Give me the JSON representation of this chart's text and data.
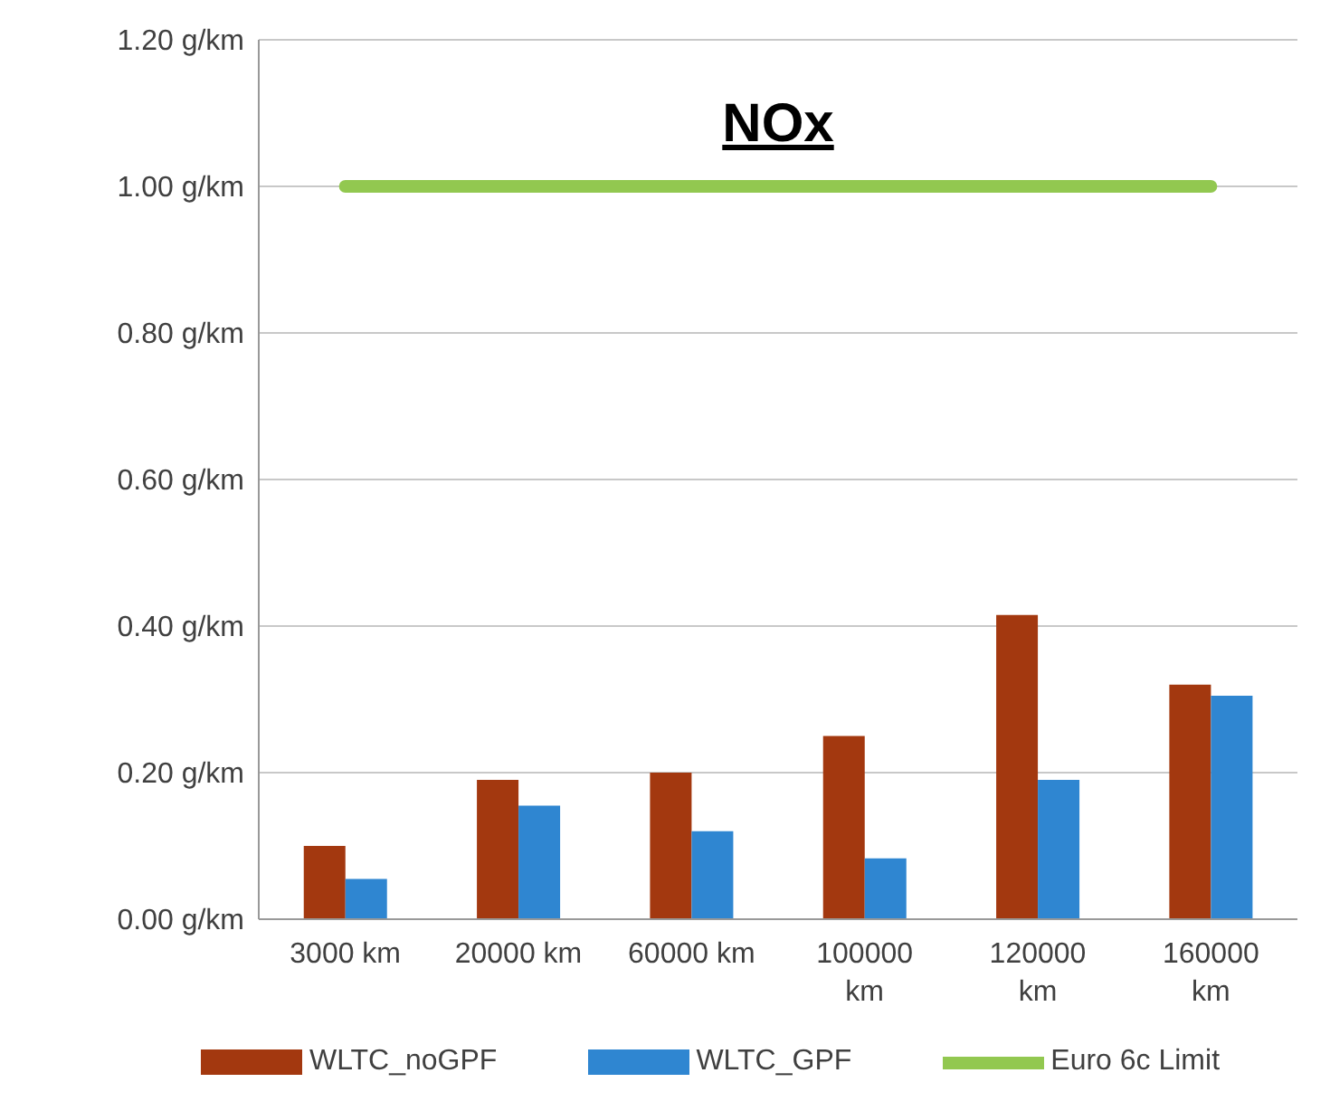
{
  "chart_data": {
    "type": "bar",
    "title": "NOx",
    "categories": [
      "3000 km",
      "20000 km",
      "60000 km",
      "100000 km",
      "120000 km",
      "160000 km"
    ],
    "series": [
      {
        "name": "WLTC_noGPF",
        "color": "#a3380f",
        "values": [
          0.1,
          0.19,
          0.2,
          0.25,
          0.415,
          0.32
        ]
      },
      {
        "name": "WLTC_GPF",
        "color": "#2f86d1",
        "values": [
          0.055,
          0.155,
          0.12,
          0.083,
          0.19,
          0.305
        ]
      },
      {
        "name": "Euro 6c Limit",
        "type": "line",
        "color": "#92c850",
        "values": [
          1,
          1,
          1,
          1,
          1,
          1
        ]
      }
    ],
    "ylim": [
      0,
      1.2
    ],
    "yticks": [
      {
        "value": 0,
        "label": "0.00 g/km"
      },
      {
        "value": 0.2,
        "label": "0.20 g/km"
      },
      {
        "value": 0.4,
        "label": "0.40 g/km"
      },
      {
        "value": 0.6,
        "label": "0.60 g/km"
      },
      {
        "value": 0.8,
        "label": "0.80 g/km"
      },
      {
        "value": 1,
        "label": "1.00 g/km"
      },
      {
        "value": 1.2,
        "label": "1.20 g/km"
      }
    ],
    "grid": "y",
    "legend": "bottom",
    "marker": "none"
  }
}
